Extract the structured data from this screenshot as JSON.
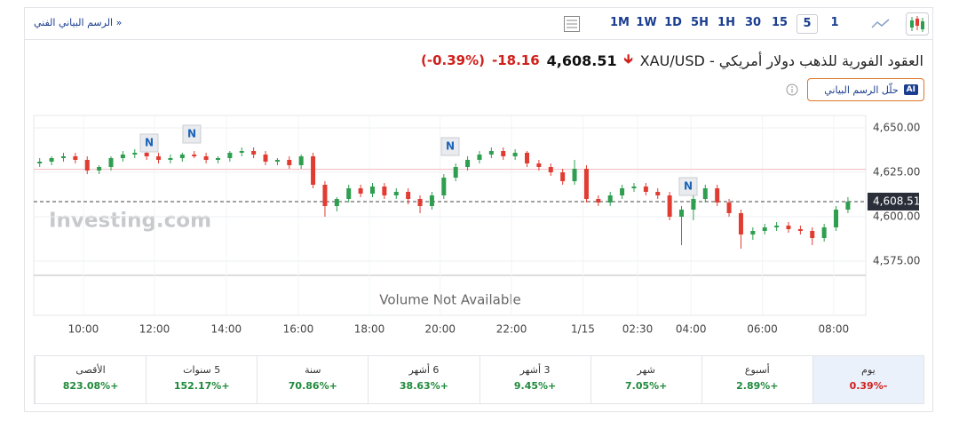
{
  "toolbar": {
    "link": "الرسم البياني الفني »",
    "timeframes": [
      "1M",
      "1W",
      "1D",
      "5H",
      "1H",
      "30",
      "15",
      "5",
      "1"
    ],
    "selected": "5"
  },
  "header": {
    "title": "XAU/USD - العقود الفورية للذهب دولار أمريكي",
    "price": "4,608.51",
    "change": "-18.16",
    "change_pct": "(-0.39%)",
    "ai_badge": "AI",
    "ai_button": "حلّل الرسم البياني"
  },
  "chart_data": {
    "type": "candlestick",
    "up_color": "#2e9e4f",
    "down_color": "#e03c31",
    "grid": true,
    "xlim": [
      0,
      70
    ],
    "xticks": [
      {
        "value": 4.18,
        "label": "10:00"
      },
      {
        "value": 10.16,
        "label": "12:00"
      },
      {
        "value": 16.2,
        "label": "14:00"
      },
      {
        "value": 22.26,
        "label": "16:00"
      },
      {
        "value": 28.24,
        "label": "18:00"
      },
      {
        "value": 34.2,
        "label": "20:00"
      },
      {
        "value": 40.2,
        "label": "22:00"
      },
      {
        "value": 46.2,
        "label": "1/15"
      },
      {
        "value": 50.8,
        "label": "02:30"
      },
      {
        "value": 55.3,
        "label": "04:00"
      },
      {
        "value": 61.3,
        "label": "06:00"
      },
      {
        "value": 67.3,
        "label": "08:00"
      }
    ],
    "ylim": [
      4567,
      4657
    ],
    "yticks": [
      {
        "value": 4650,
        "label": "4,650.00"
      },
      {
        "value": 4625,
        "label": "4,625.00"
      },
      {
        "value": 4600,
        "label": "4,600.00"
      },
      {
        "value": 4575,
        "label": "4,575.00"
      }
    ],
    "last": {
      "value": 4608.51,
      "label": "4,608.51"
    },
    "reference_line": 4626.67,
    "open": [
      4630,
      4631,
      4633,
      4634,
      4632,
      4626,
      4628,
      4633,
      4635,
      4636,
      4634,
      4632,
      4633,
      4635,
      4634,
      4632,
      4633,
      4636,
      4637,
      4635,
      4631,
      4632,
      4629,
      4634,
      4618,
      4606,
      4610,
      4616,
      4613,
      4617,
      4612,
      4614,
      4610,
      4606,
      4612,
      4622,
      4628,
      4632,
      4635,
      4637,
      4634,
      4636,
      4630,
      4628,
      4625,
      4620,
      4627,
      4610,
      4608,
      4612,
      4616,
      4617,
      4614,
      4612,
      4600,
      4604,
      4610,
      4616,
      4608,
      4602,
      4590,
      4592,
      4594,
      4595,
      4593,
      4592,
      4588,
      4594,
      4604
    ],
    "high": [
      4633,
      4634,
      4636,
      4636,
      4634,
      4629,
      4634,
      4637,
      4638,
      4638,
      4636,
      4635,
      4636,
      4637,
      4636,
      4634,
      4637,
      4639,
      4639,
      4637,
      4633,
      4634,
      4635,
      4636,
      4620,
      4611,
      4618,
      4618,
      4619,
      4619,
      4616,
      4616,
      4612,
      4614,
      4624,
      4630,
      4634,
      4637,
      4639,
      4639,
      4638,
      4637,
      4632,
      4630,
      4627,
      4632,
      4629,
      4612,
      4614,
      4618,
      4619,
      4619,
      4616,
      4614,
      4606,
      4612,
      4618,
      4618,
      4610,
      4604,
      4594,
      4596,
      4597,
      4597,
      4595,
      4594,
      4596,
      4606,
      4611
    ],
    "low": [
      4628,
      4629,
      4631,
      4630,
      4624,
      4624,
      4626,
      4631,
      4633,
      4632,
      4630,
      4630,
      4631,
      4633,
      4630,
      4630,
      4631,
      4634,
      4633,
      4629,
      4629,
      4627,
      4627,
      4616,
      4600,
      4603,
      4608,
      4611,
      4611,
      4610,
      4610,
      4607,
      4602,
      4604,
      4610,
      4620,
      4626,
      4630,
      4633,
      4632,
      4632,
      4628,
      4626,
      4623,
      4618,
      4618,
      4608,
      4606,
      4606,
      4610,
      4614,
      4612,
      4610,
      4598,
      4584,
      4598,
      4608,
      4606,
      4600,
      4582,
      4587,
      4590,
      4592,
      4591,
      4590,
      4584,
      4586,
      4592,
      4602
    ],
    "close": [
      4631,
      4633,
      4634,
      4632,
      4626,
      4628,
      4633,
      4635,
      4636,
      4634,
      4632,
      4633,
      4635,
      4634,
      4632,
      4633,
      4636,
      4637,
      4635,
      4631,
      4632,
      4629,
      4634,
      4618,
      4606,
      4610,
      4616,
      4613,
      4617,
      4612,
      4614,
      4610,
      4606,
      4612,
      4622,
      4628,
      4632,
      4635,
      4637,
      4634,
      4636,
      4630,
      4628,
      4625,
      4620,
      4627,
      4610,
      4608,
      4612,
      4616,
      4617,
      4614,
      4612,
      4600,
      4604,
      4610,
      4616,
      4608,
      4602,
      4590,
      4592,
      4594,
      4595,
      4593,
      4592,
      4588,
      4594,
      4604,
      4608.51
    ],
    "news_markers": [
      "N",
      "N",
      "N",
      "N"
    ],
    "watermark": "Investing.com",
    "volume_note": "Volume Not Available"
  },
  "performance": [
    {
      "period": "يوم",
      "change": "-0.39%"
    },
    {
      "period": "أسبوع",
      "change": "+2.89%"
    },
    {
      "period": "شهر",
      "change": "+7.05%"
    },
    {
      "period": "3 أشهر",
      "change": "+9.45%"
    },
    {
      "period": "6 أشهر",
      "change": "+38.63%"
    },
    {
      "period": "سنة",
      "change": "+70.86%"
    },
    {
      "period": "5 سنوات",
      "change": "+152.17%"
    },
    {
      "period": "الأقصى",
      "change": "+823.08%"
    }
  ]
}
